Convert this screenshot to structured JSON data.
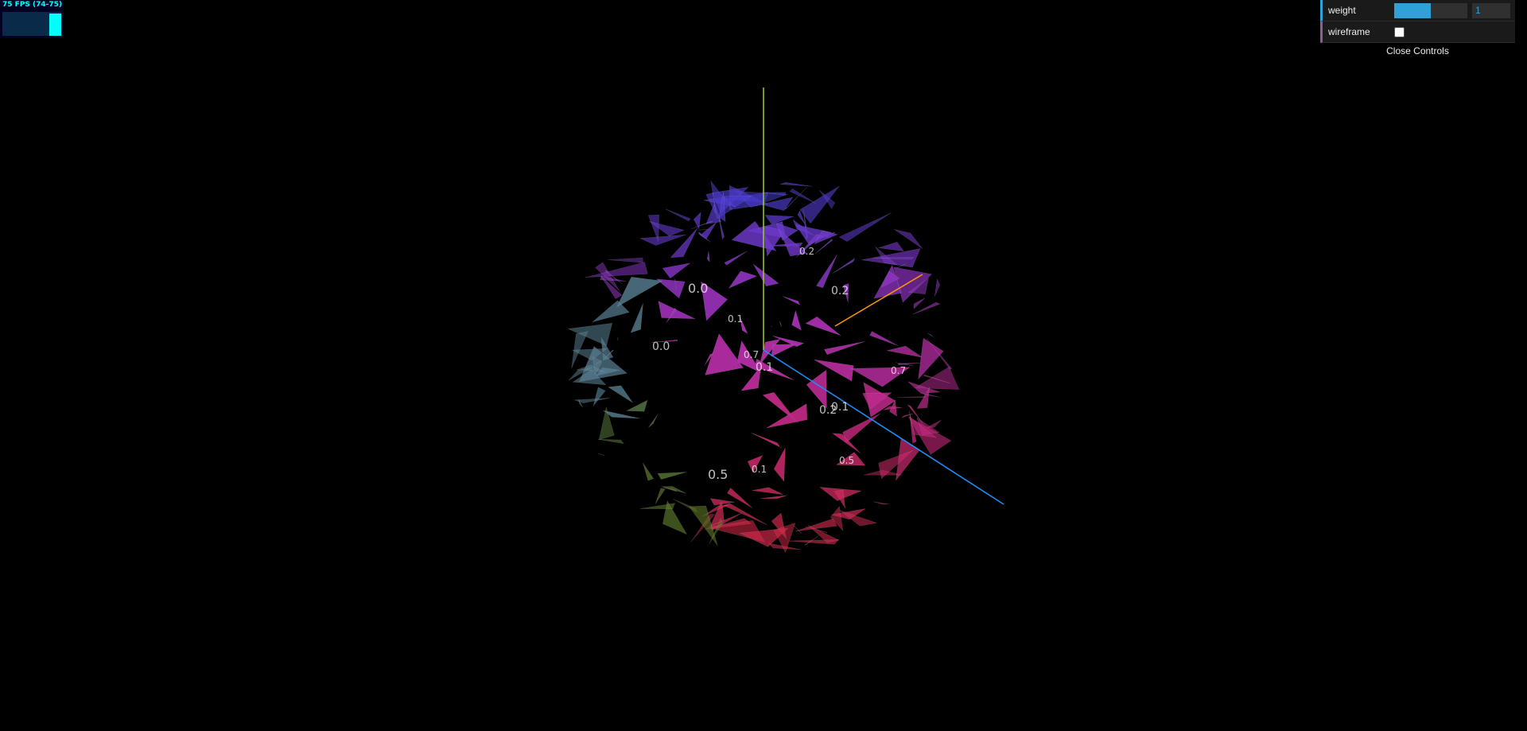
{
  "stats": {
    "fps_text": "75 FPS (74-75)",
    "fps": 75,
    "fps_min": 74,
    "fps_max": 75
  },
  "controls": {
    "weight": {
      "label": "weight",
      "value": "1",
      "slider_fraction": 0.5
    },
    "wireframe": {
      "label": "wireframe",
      "checked": false
    },
    "close_label": "Close Controls"
  },
  "scene": {
    "face_labels": [
      "0.0",
      "0.1",
      "0.2",
      "0.2",
      "0.7",
      "0.1",
      "0.5",
      "0.1",
      "0.2",
      "0.1",
      "0.5",
      "0.7",
      "0.0"
    ],
    "colors": {
      "stats_text": "#00ffff",
      "stats_bg": "#000022",
      "slider": "#2fa1d6",
      "boolean_accent": "#806787",
      "axis_y": "#9acd32",
      "axis_x": "#ff9900",
      "axis_z": "#1e90ff"
    }
  }
}
